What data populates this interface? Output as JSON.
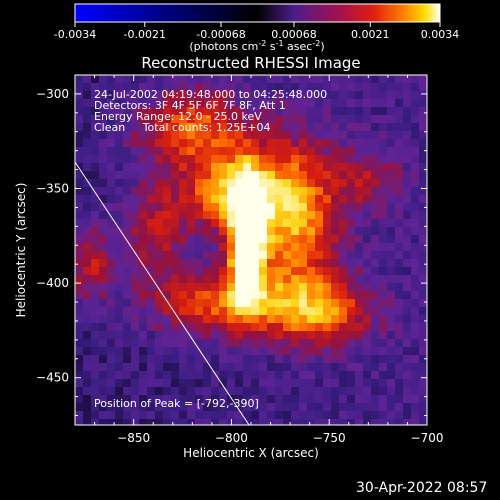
{
  "chart_data": {
    "type": "heatmap",
    "title": "Reconstructed RHESSI Image",
    "xlabel": "Heliocentric X (arcsec)",
    "ylabel": "Heliocentric Y (arcsec)",
    "xlim": [
      -880,
      -700
    ],
    "ylim": [
      -475,
      -290
    ],
    "xticks": [
      -850,
      -800,
      -750,
      -700
    ],
    "yticks": [
      -300,
      -350,
      -400,
      -450
    ],
    "colorbar": {
      "range": [
        -0.0034,
        0.0034
      ],
      "ticks": [
        "-0.0034",
        "-0.0021",
        "-0.00068",
        "0.00068",
        "0.0021",
        "0.0034"
      ],
      "label_main": "(photons cm",
      "label_exp1": "-2",
      "label_mid": " s",
      "label_exp2": "-1",
      "label_mid2": " asec",
      "label_exp3": "-2",
      "label_end": ")",
      "colormap": [
        "#0000ff",
        "#000000",
        "#4b1e88",
        "#a01050",
        "#e02010",
        "#ff8000",
        "#ffe000",
        "#ffffff"
      ]
    },
    "annotations": [
      "24-Jul-2002 04:19:48.000 to 04:25:48.000",
      "Detectors: 3F 4F 5F 6F 7F 8F, Att 1",
      "Energy Range: 12.0 - 25.0 keV",
      "Clean     Total counts: 1.25E+04"
    ],
    "peak_label": "Position of Peak = [-792,-390]",
    "peak": [
      -792,
      -390
    ],
    "limb_line": [
      [
        -880,
        -336
      ],
      [
        -791,
        -475
      ]
    ],
    "sources": [
      {
        "x": -792,
        "y": -378,
        "amp": 1.0,
        "sx": 6,
        "sy": 22
      },
      {
        "x": -800,
        "y": -352,
        "amp": 0.55,
        "sx": 18,
        "sy": 14
      },
      {
        "x": -768,
        "y": -365,
        "amp": 0.55,
        "sx": 16,
        "sy": 28
      },
      {
        "x": -820,
        "y": -318,
        "amp": 0.45,
        "sx": 20,
        "sy": 14
      },
      {
        "x": -805,
        "y": -410,
        "amp": 0.45,
        "sx": 26,
        "sy": 12
      },
      {
        "x": -755,
        "y": -415,
        "amp": 0.45,
        "sx": 18,
        "sy": 12
      },
      {
        "x": -840,
        "y": -372,
        "amp": 0.28,
        "sx": 12,
        "sy": 18
      },
      {
        "x": -730,
        "y": -345,
        "amp": 0.22,
        "sx": 12,
        "sy": 12
      },
      {
        "x": -872,
        "y": -390,
        "amp": 0.32,
        "sx": 8,
        "sy": 14
      }
    ]
  },
  "timestamp": "30-Apr-2022 08:57"
}
